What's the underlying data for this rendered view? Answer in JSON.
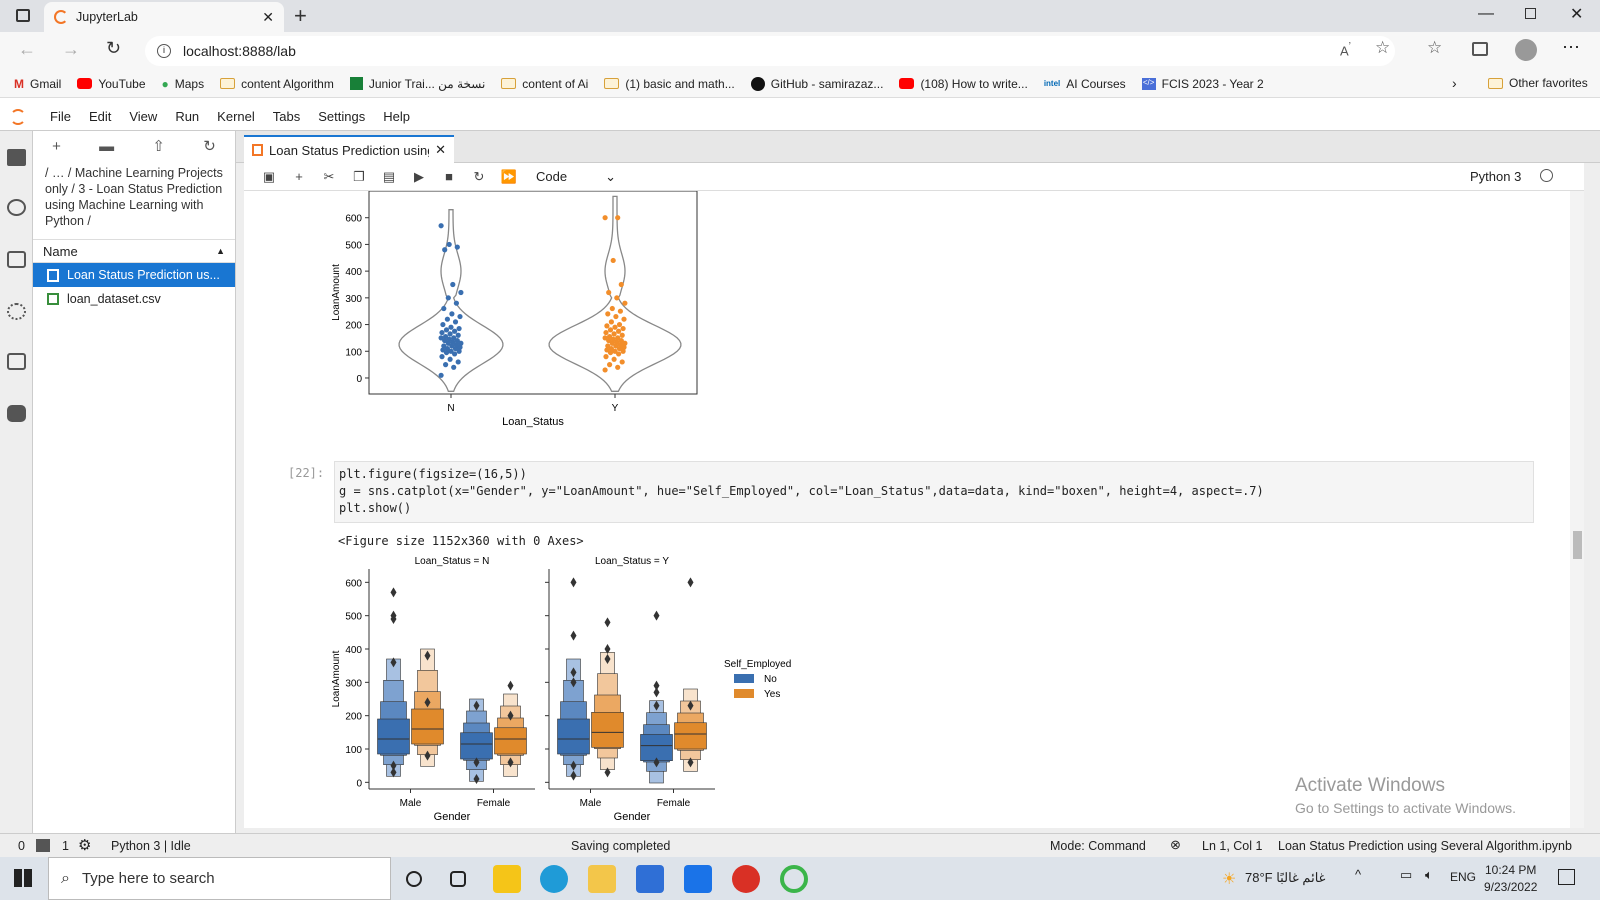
{
  "browser": {
    "tab_title": "JupyterLab",
    "url": "localhost:8888/lab",
    "bookmarks": [
      "Gmail",
      "YouTube",
      "Maps",
      "content Algorithm",
      "Junior Trai... نسخة من",
      "content of Ai",
      "(1) basic and math...",
      "GitHub - samirazaz...",
      "(108) How to write...",
      "AI Courses",
      "FCIS 2023 - Year 2"
    ],
    "other_favorites": "Other favorites"
  },
  "menu": [
    "File",
    "Edit",
    "View",
    "Run",
    "Kernel",
    "Tabs",
    "Settings",
    "Help"
  ],
  "filebrowser": {
    "breadcrumb": "/ … / Machine Learning Projects only / 3 - Loan Status Prediction using Machine Learning with Python /",
    "column": "Name",
    "files": [
      "Loan Status Prediction us...",
      "loan_dataset.csv"
    ]
  },
  "notebook": {
    "tab": "Loan Status Prediction using",
    "cell_type": "Code",
    "kernel": "Python 3",
    "prompt": "[22]:",
    "code_line1": "plt.figure(figsize=(16,5))",
    "code_line2": "g = sns.catplot(x=\"Gender\", y=\"LoanAmount\", hue=\"Self_Employed\", col=\"Loan_Status\",data=data, kind=\"boxen\", height=4, aspect=.7)",
    "code_line3": "plt.show()",
    "output_text": "<Figure size 1152x360 with 0 Axes>"
  },
  "chart_data": [
    {
      "type": "scatter",
      "xlabel": "Loan_Status",
      "ylabel": "LoanAmount",
      "categories": [
        "N",
        "Y"
      ],
      "yticks": [
        0,
        100,
        200,
        300,
        400,
        500,
        600
      ],
      "ylim": [
        -60,
        700
      ],
      "colors": {
        "N": "#3a6fb0",
        "Y": "#f28e2b"
      },
      "series": [
        {
          "values": [
            10,
            40,
            50,
            60,
            70,
            80,
            90,
            95,
            100,
            100,
            105,
            110,
            110,
            115,
            120,
            120,
            125,
            130,
            130,
            135,
            140,
            140,
            145,
            150,
            150,
            155,
            160,
            165,
            170,
            175,
            180,
            185,
            190,
            200,
            210,
            220,
            230,
            240,
            260,
            280,
            300,
            320,
            350,
            480,
            490,
            500,
            570
          ]
        },
        {
          "values": [
            30,
            40,
            50,
            60,
            70,
            80,
            90,
            95,
            100,
            100,
            105,
            110,
            110,
            115,
            120,
            120,
            125,
            130,
            130,
            135,
            140,
            140,
            145,
            150,
            150,
            155,
            160,
            165,
            170,
            175,
            180,
            185,
            190,
            195,
            200,
            210,
            220,
            230,
            240,
            250,
            260,
            280,
            300,
            320,
            350,
            440,
            600,
            600
          ]
        }
      ]
    },
    {
      "type": "boxen",
      "xlabel": "Gender",
      "ylabel": "LoanAmount",
      "panels": [
        "Loan_Status = N",
        "Loan_Status = Y"
      ],
      "categories": [
        "Male",
        "Female"
      ],
      "legend_title": "Self_Employed",
      "legend": [
        "No",
        "Yes"
      ],
      "colors": {
        "No": "#3a6fb0",
        "Yes": "#e08a2c"
      },
      "yticks": [
        0,
        100,
        200,
        300,
        400,
        500,
        600
      ],
      "medians": {
        "Loan_Status = N": {
          "Male": {
            "No": 130,
            "Yes": 160
          },
          "Female": {
            "No": 115,
            "Yes": 130
          }
        },
        "Loan_Status = Y": {
          "Male": {
            "No": 130,
            "Yes": 150
          },
          "Female": {
            "No": 110,
            "Yes": 145
          }
        }
      },
      "outliers": {
        "Loan_Status = N": {
          "Male": {
            "No": [
              570,
              500,
              490,
              360,
              50,
              30
            ],
            "Yes": [
              380,
              240,
              80
            ]
          },
          "Female": {
            "No": [
              230,
              60,
              10
            ],
            "Yes": [
              290,
              200,
              60
            ]
          }
        },
        "Loan_Status = Y": {
          "Male": {
            "No": [
              600,
              440,
              330,
              300,
              50,
              20
            ],
            "Yes": [
              480,
              400,
              370,
              30
            ]
          },
          "Female": {
            "No": [
              500,
              290,
              270,
              230,
              60
            ],
            "Yes": [
              600,
              230,
              60
            ]
          }
        }
      }
    }
  ],
  "status": {
    "left": "0",
    "terminals": "1",
    "kernel_state": "Python 3 | Idle",
    "message": "Saving completed",
    "mode": "Mode: Command",
    "position": "Ln 1, Col 1",
    "file": "Loan Status Prediction using Several Algorithm.ipynb"
  },
  "watermark": {
    "title": "Activate Windows",
    "sub": "Go to Settings to activate Windows."
  },
  "taskbar": {
    "search_placeholder": "Type here to search",
    "weather": "78°F  غائم غالبًا",
    "lang": "ENG",
    "time": "10:24 PM",
    "date": "9/23/2022"
  }
}
